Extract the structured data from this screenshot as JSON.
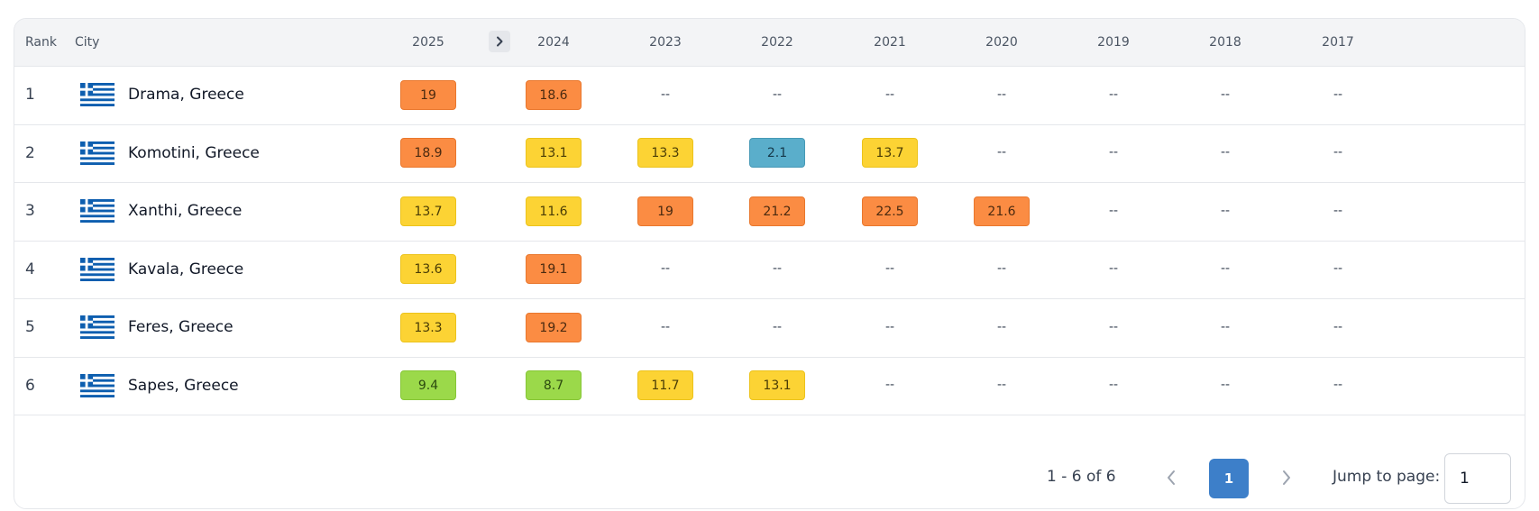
{
  "table": {
    "headers": {
      "rank": "Rank",
      "city": "City",
      "years": [
        "2025",
        "2024",
        "2023",
        "2022",
        "2021",
        "2020",
        "2019",
        "2018",
        "2017"
      ]
    },
    "colors": {
      "orange": "#fb8c43",
      "yellow": "#fcd334",
      "green": "#9bd94a",
      "blue": "#5aaecb"
    },
    "flag_icon": "greece-flag-icon",
    "rows": [
      {
        "rank": "1",
        "city": "Drama, Greece",
        "values": [
          {
            "v": "19",
            "c": "orange"
          },
          {
            "v": "18.6",
            "c": "orange"
          },
          {
            "v": "--",
            "c": "empty"
          },
          {
            "v": "--",
            "c": "empty"
          },
          {
            "v": "--",
            "c": "empty"
          },
          {
            "v": "--",
            "c": "empty"
          },
          {
            "v": "--",
            "c": "empty"
          },
          {
            "v": "--",
            "c": "empty"
          },
          {
            "v": "--",
            "c": "empty"
          }
        ]
      },
      {
        "rank": "2",
        "city": "Komotini, Greece",
        "values": [
          {
            "v": "18.9",
            "c": "orange"
          },
          {
            "v": "13.1",
            "c": "yellow"
          },
          {
            "v": "13.3",
            "c": "yellow"
          },
          {
            "v": "2.1",
            "c": "blue"
          },
          {
            "v": "13.7",
            "c": "yellow"
          },
          {
            "v": "--",
            "c": "empty"
          },
          {
            "v": "--",
            "c": "empty"
          },
          {
            "v": "--",
            "c": "empty"
          },
          {
            "v": "--",
            "c": "empty"
          }
        ]
      },
      {
        "rank": "3",
        "city": "Xanthi, Greece",
        "values": [
          {
            "v": "13.7",
            "c": "yellow"
          },
          {
            "v": "11.6",
            "c": "yellow"
          },
          {
            "v": "19",
            "c": "orange"
          },
          {
            "v": "21.2",
            "c": "orange"
          },
          {
            "v": "22.5",
            "c": "orange"
          },
          {
            "v": "21.6",
            "c": "orange"
          },
          {
            "v": "--",
            "c": "empty"
          },
          {
            "v": "--",
            "c": "empty"
          },
          {
            "v": "--",
            "c": "empty"
          }
        ]
      },
      {
        "rank": "4",
        "city": "Kavala, Greece",
        "values": [
          {
            "v": "13.6",
            "c": "yellow"
          },
          {
            "v": "19.1",
            "c": "orange"
          },
          {
            "v": "--",
            "c": "empty"
          },
          {
            "v": "--",
            "c": "empty"
          },
          {
            "v": "--",
            "c": "empty"
          },
          {
            "v": "--",
            "c": "empty"
          },
          {
            "v": "--",
            "c": "empty"
          },
          {
            "v": "--",
            "c": "empty"
          },
          {
            "v": "--",
            "c": "empty"
          }
        ]
      },
      {
        "rank": "5",
        "city": "Feres, Greece",
        "values": [
          {
            "v": "13.3",
            "c": "yellow"
          },
          {
            "v": "19.2",
            "c": "orange"
          },
          {
            "v": "--",
            "c": "empty"
          },
          {
            "v": "--",
            "c": "empty"
          },
          {
            "v": "--",
            "c": "empty"
          },
          {
            "v": "--",
            "c": "empty"
          },
          {
            "v": "--",
            "c": "empty"
          },
          {
            "v": "--",
            "c": "empty"
          },
          {
            "v": "--",
            "c": "empty"
          }
        ]
      },
      {
        "rank": "6",
        "city": "Sapes, Greece",
        "values": [
          {
            "v": "9.4",
            "c": "green"
          },
          {
            "v": "8.7",
            "c": "green"
          },
          {
            "v": "11.7",
            "c": "yellow"
          },
          {
            "v": "13.1",
            "c": "yellow"
          },
          {
            "v": "--",
            "c": "empty"
          },
          {
            "v": "--",
            "c": "empty"
          },
          {
            "v": "--",
            "c": "empty"
          },
          {
            "v": "--",
            "c": "empty"
          },
          {
            "v": "--",
            "c": "empty"
          }
        ]
      }
    ]
  },
  "pagination": {
    "range": "1 - 6 of 6",
    "current_page": "1",
    "jump_label": "Jump to page:",
    "jump_value": "1"
  }
}
